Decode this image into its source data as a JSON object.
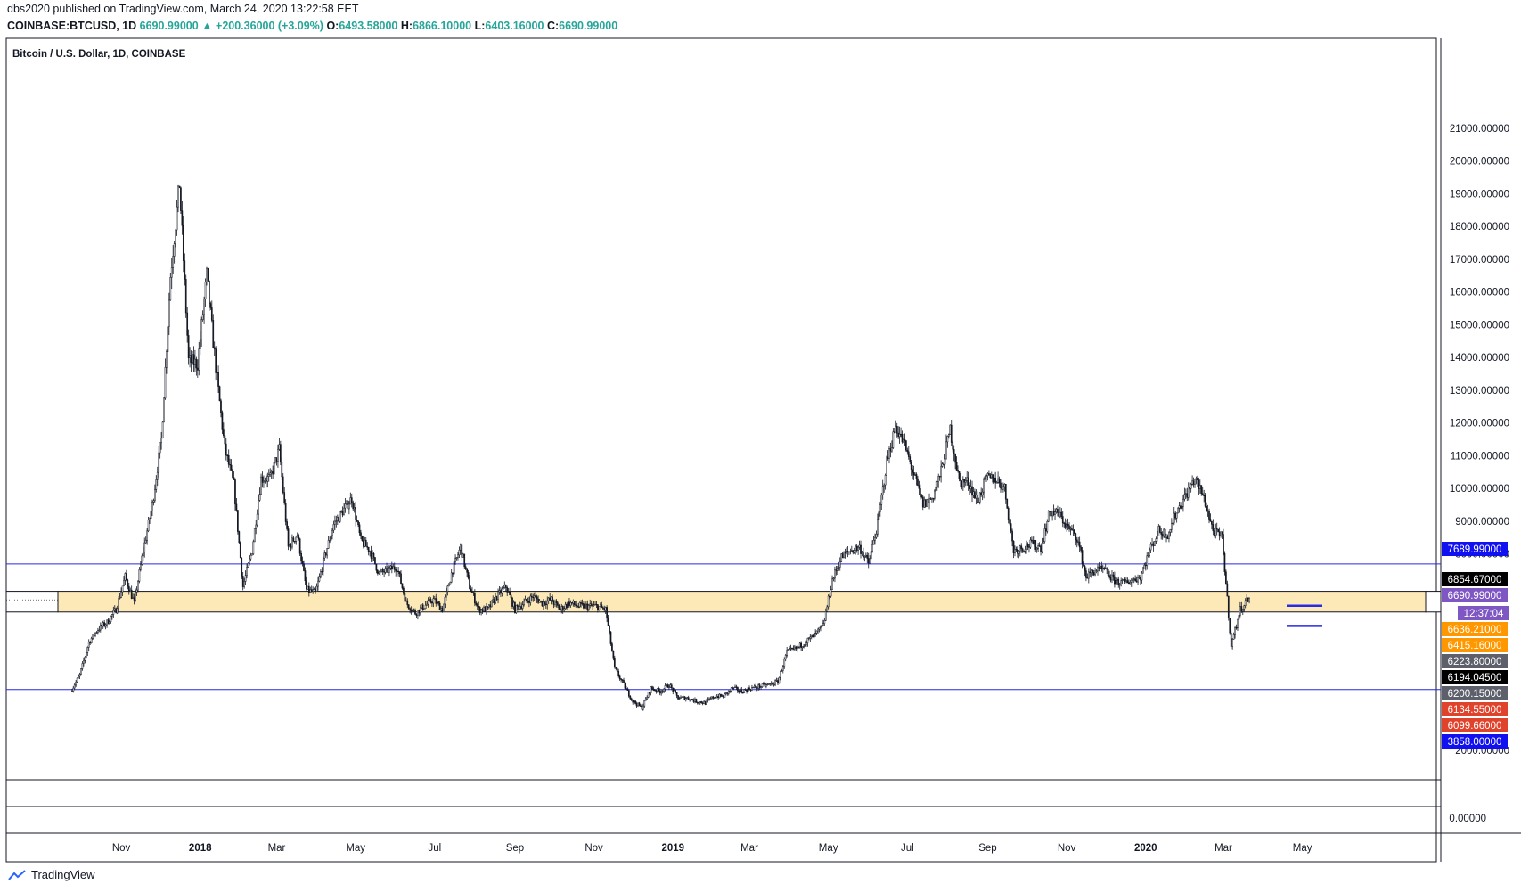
{
  "header": {
    "publisher": "dbs2020 published on TradingView.com, March 24, 2020 13:22:58 EET",
    "symbol": "COINBASE:BTCUSD, 1D",
    "last": "6690.99000",
    "change": "+200.36000 (+3.09%)",
    "open_label": "O:",
    "open": "6493.58000",
    "high_label": "H:",
    "high": "6866.10000",
    "low_label": "L:",
    "low": "6403.16000",
    "close_label": "C:",
    "close": "6690.99000"
  },
  "footer": {
    "brand": "TradingView"
  },
  "colors": {
    "candle": "#131722",
    "zone_fill": "#fde9b8",
    "line_blue": "#2929e8",
    "label_black": "#000000",
    "label_purple": "#7e57c2",
    "label_orange": "#ff9800",
    "label_gray": "#5d606b",
    "label_red": "#e0432c",
    "label_blue": "#1010f0"
  },
  "chart_data": {
    "type": "candlestick",
    "title": "Bitcoin / U.S. Dollar, 1D, COINBASE",
    "x_ticks": [
      "Nov",
      "2018",
      "Mar",
      "May",
      "Jul",
      "Sep",
      "Nov",
      "2019",
      "Mar",
      "May",
      "Jul",
      "Sep",
      "Nov",
      "2020",
      "Mar",
      "May"
    ],
    "x_ticks_bold": [
      "2018",
      "2019",
      "2020"
    ],
    "y_ticks": [
      "21000.00000",
      "20000.00000",
      "19000.00000",
      "18000.00000",
      "17000.00000",
      "16000.00000",
      "15000.00000",
      "14000.00000",
      "13000.00000",
      "12000.00000",
      "11000.00000",
      "10000.00000",
      "9000.00000",
      "8000.00000",
      "2000.00000"
    ],
    "y_ticks_lower_pane": [
      "0.00000"
    ],
    "ylim": [
      1000,
      21500
    ],
    "closes_approx": [
      [
        "2017-09-24",
        3800
      ],
      [
        "2017-10-01",
        4300
      ],
      [
        "2017-10-08",
        5300
      ],
      [
        "2017-10-15",
        5700
      ],
      [
        "2017-10-22",
        5900
      ],
      [
        "2017-10-29",
        6300
      ],
      [
        "2017-11-05",
        7300
      ],
      [
        "2017-11-12",
        6500
      ],
      [
        "2017-11-19",
        8100
      ],
      [
        "2017-11-26",
        9500
      ],
      [
        "2017-12-03",
        11500
      ],
      [
        "2017-12-10",
        16500
      ],
      [
        "2017-12-17",
        19300
      ],
      [
        "2017-12-24",
        13900
      ],
      [
        "2017-12-31",
        13800
      ],
      [
        "2018-01-07",
        16500
      ],
      [
        "2018-01-14",
        13700
      ],
      [
        "2018-01-21",
        11200
      ],
      [
        "2018-01-28",
        10100
      ],
      [
        "2018-02-04",
        7000
      ],
      [
        "2018-02-11",
        8100
      ],
      [
        "2018-02-18",
        10300
      ],
      [
        "2018-02-25",
        10300
      ],
      [
        "2018-03-04",
        11200
      ],
      [
        "2018-03-11",
        8200
      ],
      [
        "2018-03-18",
        8600
      ],
      [
        "2018-03-25",
        6900
      ],
      [
        "2018-04-01",
        6800
      ],
      [
        "2018-04-08",
        7900
      ],
      [
        "2018-04-15",
        8900
      ],
      [
        "2018-04-22",
        9300
      ],
      [
        "2018-04-29",
        9700
      ],
      [
        "2018-05-06",
        8400
      ],
      [
        "2018-05-13",
        8100
      ],
      [
        "2018-05-20",
        7400
      ],
      [
        "2018-05-27",
        7500
      ],
      [
        "2018-06-03",
        7600
      ],
      [
        "2018-06-10",
        6500
      ],
      [
        "2018-06-17",
        6200
      ],
      [
        "2018-06-24",
        6400
      ],
      [
        "2018-07-01",
        6600
      ],
      [
        "2018-07-08",
        6300
      ],
      [
        "2018-07-15",
        7400
      ],
      [
        "2018-07-22",
        8200
      ],
      [
        "2018-07-29",
        7000
      ],
      [
        "2018-08-05",
        6300
      ],
      [
        "2018-08-12",
        6300
      ],
      [
        "2018-08-19",
        6700
      ],
      [
        "2018-08-26",
        7000
      ],
      [
        "2018-09-02",
        6300
      ],
      [
        "2018-09-09",
        6500
      ],
      [
        "2018-09-16",
        6700
      ],
      [
        "2018-09-23",
        6500
      ],
      [
        "2018-09-30",
        6600
      ],
      [
        "2018-10-07",
        6300
      ],
      [
        "2018-10-14",
        6500
      ],
      [
        "2018-10-21",
        6400
      ],
      [
        "2018-10-28",
        6400
      ],
      [
        "2018-11-04",
        6400
      ],
      [
        "2018-11-11",
        6300
      ],
      [
        "2018-11-18",
        4500
      ],
      [
        "2018-11-25",
        4000
      ],
      [
        "2018-12-02",
        3500
      ],
      [
        "2018-12-09",
        3300
      ],
      [
        "2018-12-16",
        3900
      ],
      [
        "2018-12-23",
        3800
      ],
      [
        "2018-12-30",
        4000
      ],
      [
        "2019-01-06",
        3600
      ],
      [
        "2019-01-13",
        3600
      ],
      [
        "2019-01-20",
        3500
      ],
      [
        "2019-01-27",
        3450
      ],
      [
        "2019-02-03",
        3650
      ],
      [
        "2019-02-10",
        3650
      ],
      [
        "2019-02-17",
        3900
      ],
      [
        "2019-02-24",
        3800
      ],
      [
        "2019-03-03",
        3900
      ],
      [
        "2019-03-10",
        3950
      ],
      [
        "2019-03-17",
        4000
      ],
      [
        "2019-03-24",
        4100
      ],
      [
        "2019-03-31",
        5000
      ],
      [
        "2019-04-07",
        5100
      ],
      [
        "2019-04-14",
        5300
      ],
      [
        "2019-04-21",
        5500
      ],
      [
        "2019-04-28",
        5800
      ],
      [
        "2019-05-05",
        7200
      ],
      [
        "2019-05-12",
        7900
      ],
      [
        "2019-05-19",
        8100
      ],
      [
        "2019-05-26",
        8200
      ],
      [
        "2019-06-02",
        7700
      ],
      [
        "2019-06-09",
        8900
      ],
      [
        "2019-06-16",
        10800
      ],
      [
        "2019-06-23",
        11900
      ],
      [
        "2019-06-30",
        11300
      ],
      [
        "2019-07-07",
        10400
      ],
      [
        "2019-07-14",
        9500
      ],
      [
        "2019-07-21",
        9700
      ],
      [
        "2019-07-28",
        10500
      ],
      [
        "2019-08-04",
        11800
      ],
      [
        "2019-08-11",
        10200
      ],
      [
        "2019-08-18",
        10200
      ],
      [
        "2019-08-25",
        9600
      ],
      [
        "2019-09-01",
        10300
      ],
      [
        "2019-09-08",
        10300
      ],
      [
        "2019-09-15",
        10000
      ],
      [
        "2019-09-22",
        8100
      ],
      [
        "2019-09-29",
        8200
      ],
      [
        "2019-10-06",
        8300
      ],
      [
        "2019-10-13",
        8200
      ],
      [
        "2019-10-20",
        9300
      ],
      [
        "2019-10-27",
        9200
      ],
      [
        "2019-11-03",
        8800
      ],
      [
        "2019-11-10",
        8500
      ],
      [
        "2019-11-17",
        7300
      ],
      [
        "2019-11-24",
        7500
      ],
      [
        "2019-12-01",
        7500
      ],
      [
        "2019-12-08",
        7200
      ],
      [
        "2019-12-15",
        7100
      ],
      [
        "2019-12-22",
        7200
      ],
      [
        "2019-12-29",
        7300
      ],
      [
        "2020-01-05",
        8100
      ],
      [
        "2020-01-12",
        8700
      ],
      [
        "2020-01-19",
        8600
      ],
      [
        "2020-01-26",
        9300
      ],
      [
        "2020-02-02",
        9800
      ],
      [
        "2020-02-09",
        10300
      ],
      [
        "2020-02-16",
        9700
      ],
      [
        "2020-02-23",
        8700
      ],
      [
        "2020-03-01",
        8500
      ],
      [
        "2020-03-08",
        5200
      ],
      [
        "2020-03-15",
        6300
      ],
      [
        "2020-03-22",
        6690
      ]
    ],
    "horizontal_lines": [
      7689.99,
      3858.0
    ],
    "zone": {
      "from": 6223.8,
      "to": 6854.67
    },
    "markers": [
      6415.16,
      5800
    ],
    "price_labels": [
      {
        "text": "7689.99000",
        "value": 7689.99,
        "color": "#1010f0"
      },
      {
        "text": "6854.67000",
        "value": 6854.67,
        "color": "#000000"
      },
      {
        "text": "6690.99000",
        "value": 6690.99,
        "color": "#7e57c2"
      },
      {
        "text": "12:37:04",
        "value": 6520,
        "color": "#7e57c2"
      },
      {
        "text": "6636.21000",
        "value": 6636.21,
        "color": "#ff9800"
      },
      {
        "text": "6415.16000",
        "value": 6415.16,
        "color": "#ff9800"
      },
      {
        "text": "6223.80000",
        "value": 6223.8,
        "color": "#5d606b"
      },
      {
        "text": "6194.04500",
        "value": 6194.045,
        "color": "#000000"
      },
      {
        "text": "6200.15000",
        "value": 6200.15,
        "color": "#5d606b"
      },
      {
        "text": "6134.55000",
        "value": 6134.55,
        "color": "#e0432c"
      },
      {
        "text": "6099.66000",
        "value": 6099.66,
        "color": "#e0432c"
      },
      {
        "text": "3858.00000",
        "value": 3858.0,
        "color": "#1010f0"
      }
    ],
    "grid": false,
    "legend_placement": "top-left"
  }
}
